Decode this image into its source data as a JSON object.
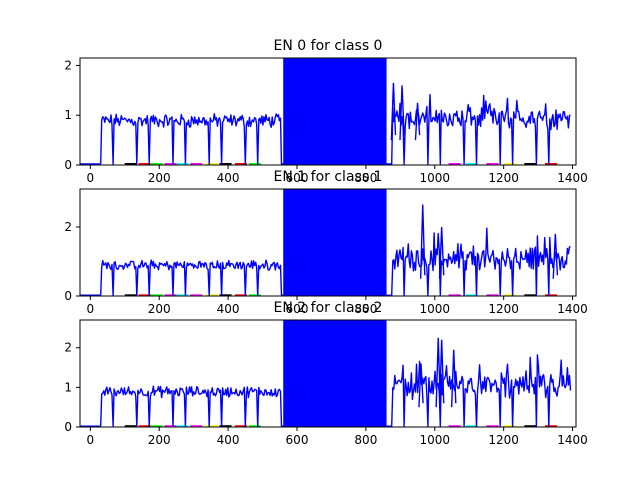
{
  "chart_data": [
    {
      "type": "line",
      "title": "EN 0 for class 0",
      "xlim": [
        -30,
        1410
      ],
      "ylim": [
        0,
        2.15
      ],
      "xticks": [
        0,
        200,
        400,
        600,
        800,
        1000,
        1200,
        1400
      ],
      "yticks": [
        0,
        1,
        2
      ],
      "segments": [
        {
          "start": 30,
          "end": 555,
          "base": 1.0,
          "var": 0.1
        },
        {
          "start": 560,
          "end": 860,
          "base": 2.2,
          "var": 0.0
        },
        {
          "start": 875,
          "end": 1395,
          "base": 1.05,
          "var": 0.25
        }
      ],
      "peaks": [
        [
          880,
          1.65
        ],
        [
          905,
          1.6
        ],
        [
          950,
          1.25
        ]
      ]
    },
    {
      "type": "line",
      "title": "EN 1 for class 1",
      "xlim": [
        -30,
        1410
      ],
      "ylim": [
        0,
        3.1
      ],
      "xticks": [
        0,
        200,
        400,
        600,
        800,
        1000,
        1200,
        1400
      ],
      "yticks": [
        0,
        2
      ],
      "segments": [
        {
          "start": 30,
          "end": 555,
          "base": 1.0,
          "var": 0.1
        },
        {
          "start": 560,
          "end": 860,
          "base": 3.2,
          "var": 0.0
        },
        {
          "start": 875,
          "end": 1395,
          "base": 1.2,
          "var": 0.5
        }
      ],
      "peaks": [
        [
          965,
          2.65
        ],
        [
          1020,
          2.0
        ],
        [
          1350,
          1.8
        ]
      ]
    },
    {
      "type": "line",
      "title": "EN 2 for class 2",
      "xlim": [
        -30,
        1410
      ],
      "ylim": [
        0,
        2.7
      ],
      "xticks": [
        0,
        200,
        400,
        600,
        800,
        1000,
        1200,
        1400
      ],
      "yticks": [
        0,
        1,
        2
      ],
      "segments": [
        {
          "start": 30,
          "end": 555,
          "base": 1.0,
          "var": 0.1
        },
        {
          "start": 560,
          "end": 860,
          "base": 2.8,
          "var": 0.0
        },
        {
          "start": 875,
          "end": 1395,
          "base": 1.15,
          "var": 0.45
        }
      ],
      "peaks": [
        [
          1010,
          2.25
        ],
        [
          1020,
          2.2
        ],
        [
          960,
          1.6
        ],
        [
          1055,
          1.95
        ]
      ]
    }
  ],
  "bottom_strip_colors": [
    "#000000",
    "#ff0000",
    "#00ff00",
    "#ff00ff",
    "#00ffff",
    "#ff00ff",
    "#ffff00"
  ],
  "line_color": "#0000ff"
}
